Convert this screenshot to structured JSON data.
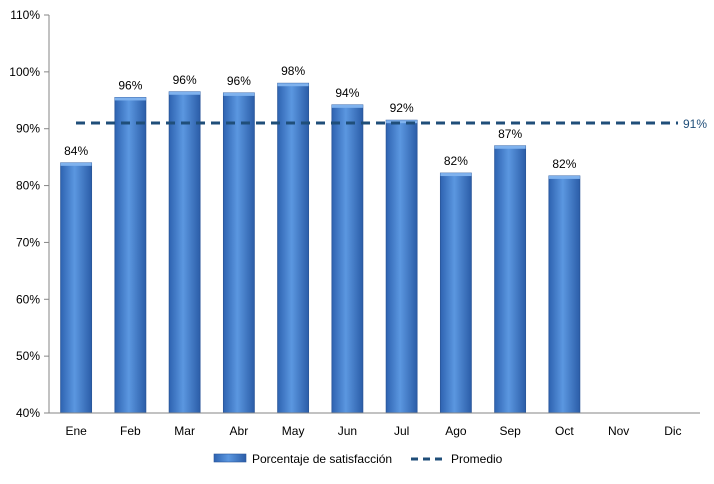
{
  "chart_data": {
    "type": "bar",
    "categories": [
      "Ene",
      "Feb",
      "Mar",
      "Abr",
      "May",
      "Jun",
      "Jul",
      "Ago",
      "Sep",
      "Oct",
      "Nov",
      "Dic"
    ],
    "series": [
      {
        "name": "Porcentaje de satisfacción",
        "type": "bar",
        "values": [
          84,
          95.5,
          96.5,
          96.3,
          98,
          94.2,
          91.5,
          82.2,
          87,
          81.7,
          null,
          null
        ],
        "labels": [
          "84%",
          "96%",
          "96%",
          "96%",
          "98%",
          "94%",
          "92%",
          "82%",
          "87%",
          "82%",
          "",
          ""
        ],
        "color": "#4A86D4"
      },
      {
        "name": "Promedio",
        "type": "line",
        "style": "dashed",
        "value": 91,
        "label": "91%",
        "color": "#1F4E79"
      }
    ],
    "title": "",
    "xlabel": "",
    "ylabel": "",
    "ylim": [
      40,
      110
    ],
    "yticks": [
      "40%",
      "50%",
      "60%",
      "70%",
      "80%",
      "90%",
      "100%",
      "110%"
    ],
    "grid": false,
    "legend": "bottom"
  }
}
